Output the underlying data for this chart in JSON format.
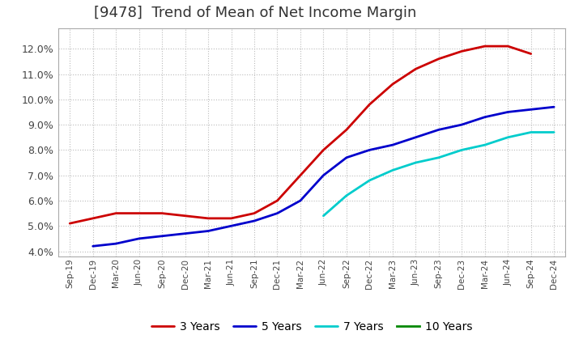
{
  "title": "[9478]  Trend of Mean of Net Income Margin",
  "x_labels": [
    "Sep-19",
    "Dec-19",
    "Mar-20",
    "Jun-20",
    "Sep-20",
    "Dec-20",
    "Mar-21",
    "Jun-21",
    "Sep-21",
    "Dec-21",
    "Mar-22",
    "Jun-22",
    "Sep-22",
    "Dec-22",
    "Mar-23",
    "Jun-23",
    "Sep-23",
    "Dec-23",
    "Mar-24",
    "Jun-24",
    "Sep-24",
    "Dec-24"
  ],
  "ylim": [
    0.038,
    0.128
  ],
  "yticks": [
    0.04,
    0.05,
    0.06,
    0.07,
    0.08,
    0.09,
    0.1,
    0.11,
    0.12
  ],
  "series": {
    "3 Years": {
      "color": "#cc0000",
      "data_x": [
        0,
        1,
        2,
        3,
        4,
        5,
        6,
        7,
        8,
        9,
        10,
        11,
        12,
        13,
        14,
        15,
        16,
        17,
        18,
        19,
        20
      ],
      "data_y": [
        0.051,
        0.053,
        0.055,
        0.055,
        0.055,
        0.054,
        0.053,
        0.053,
        0.055,
        0.06,
        0.07,
        0.08,
        0.088,
        0.098,
        0.106,
        0.112,
        0.116,
        0.119,
        0.121,
        0.121,
        0.118
      ]
    },
    "5 Years": {
      "color": "#0000cc",
      "data_x": [
        1,
        2,
        3,
        4,
        5,
        6,
        7,
        8,
        9,
        10,
        11,
        12,
        13,
        14,
        15,
        16,
        17,
        18,
        19,
        20,
        21
      ],
      "data_y": [
        0.042,
        0.043,
        0.045,
        0.046,
        0.047,
        0.048,
        0.05,
        0.052,
        0.055,
        0.06,
        0.07,
        0.077,
        0.08,
        0.082,
        0.085,
        0.088,
        0.09,
        0.093,
        0.095,
        0.096,
        0.097
      ]
    },
    "7 Years": {
      "color": "#00cccc",
      "data_x": [
        11,
        12,
        13,
        14,
        15,
        16,
        17,
        18,
        19,
        20,
        21
      ],
      "data_y": [
        0.054,
        0.062,
        0.068,
        0.072,
        0.075,
        0.077,
        0.08,
        0.082,
        0.085,
        0.087,
        0.087
      ]
    },
    "10 Years": {
      "color": "#008800",
      "data_x": [],
      "data_y": []
    }
  },
  "background_color": "#ffffff",
  "plot_bg_color": "#ffffff",
  "grid_color": "#bbbbbb",
  "title_fontsize": 13,
  "legend_fontsize": 10,
  "line_width": 2.0
}
